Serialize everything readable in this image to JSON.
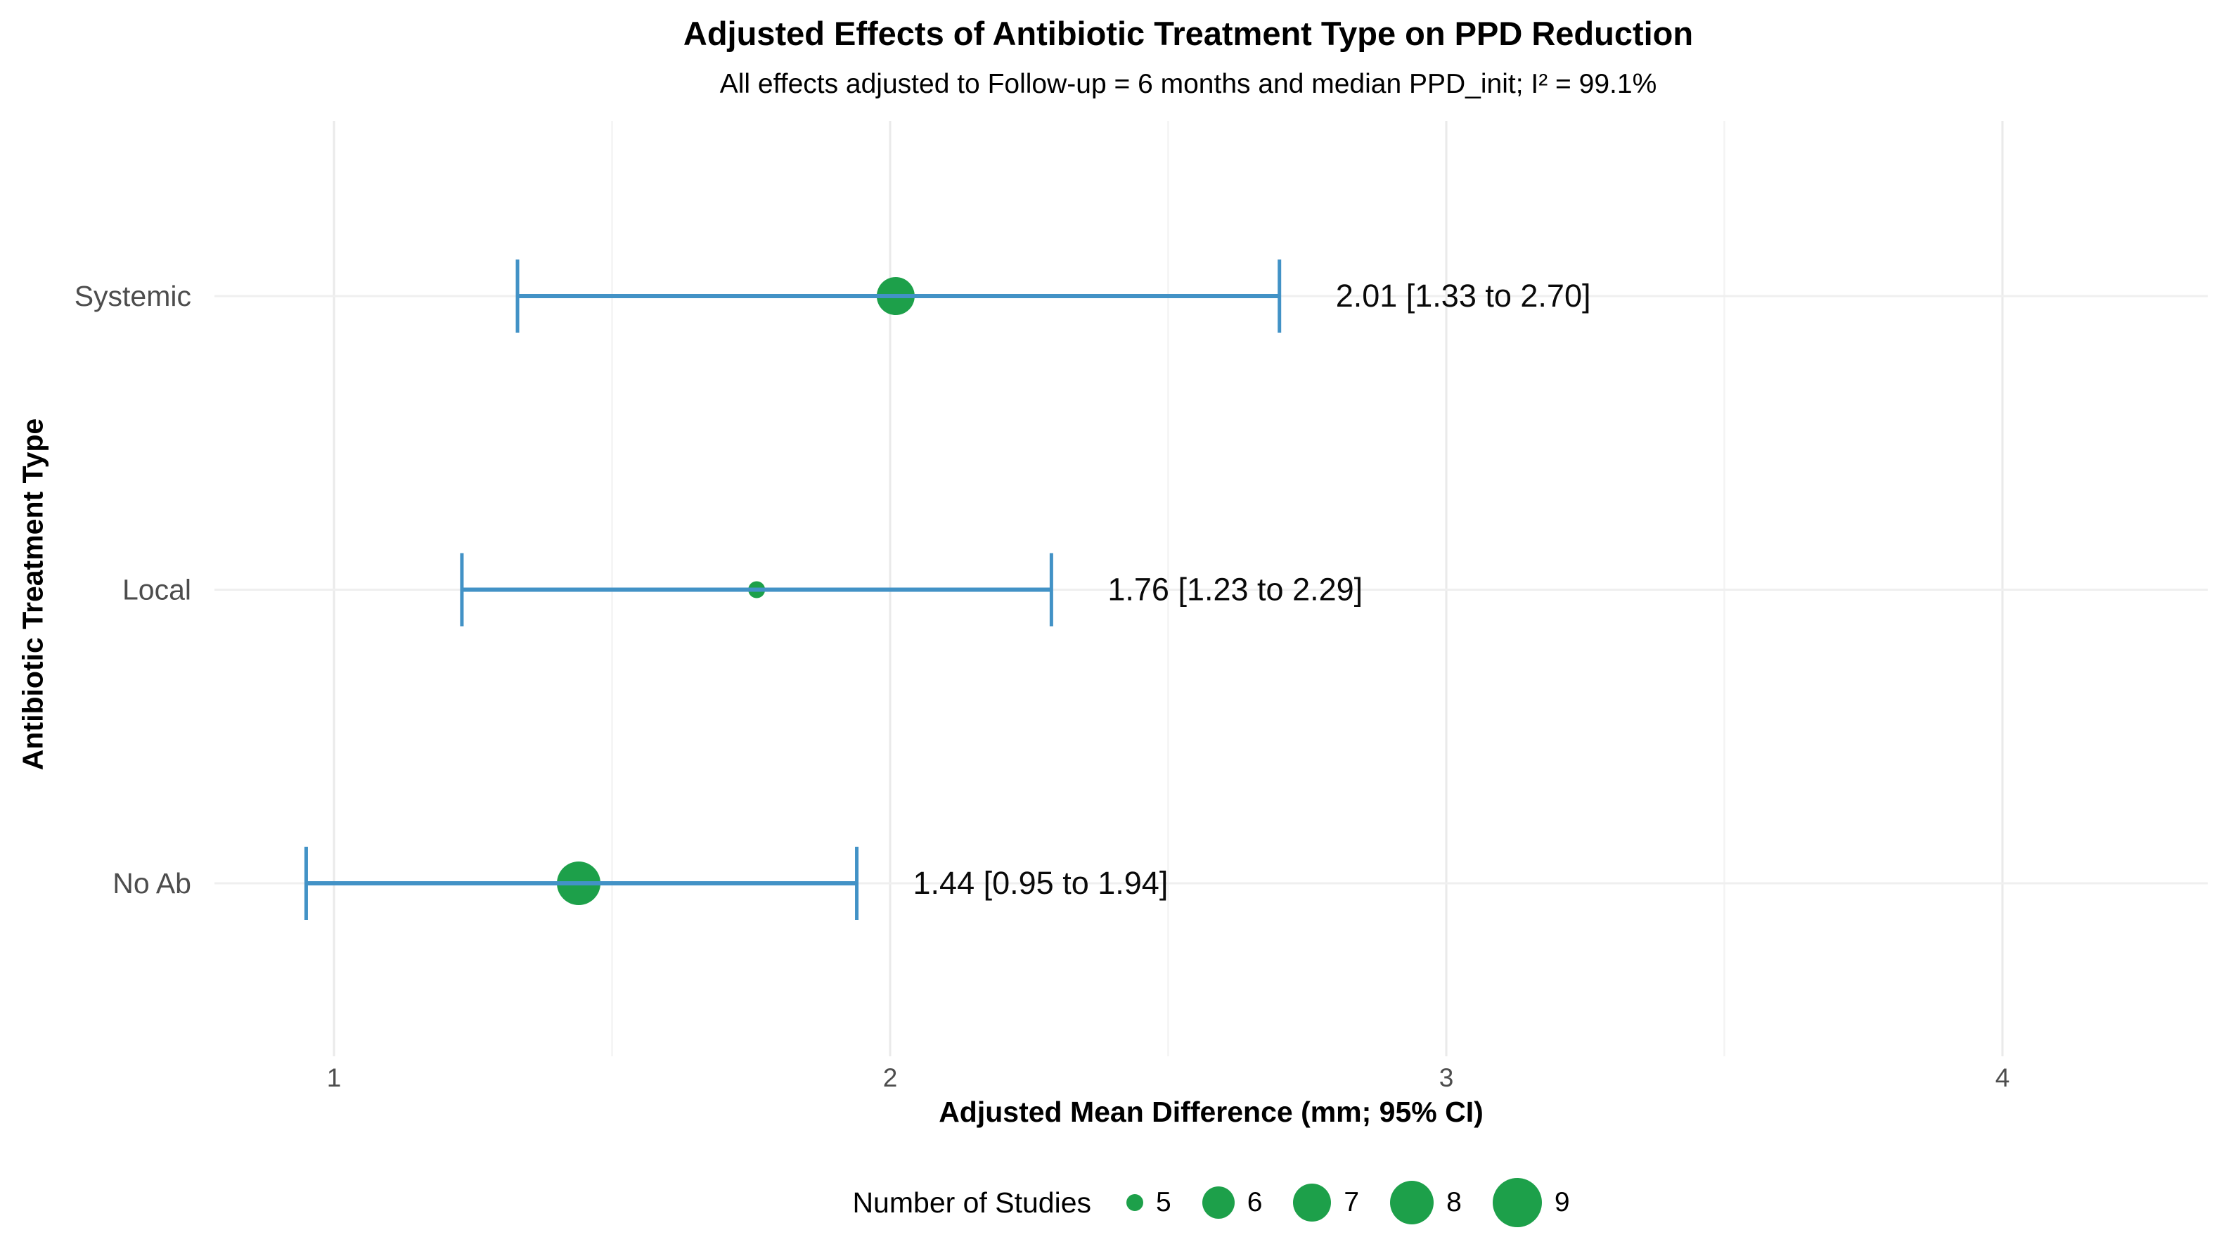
{
  "chart_data": {
    "type": "scatter",
    "subtype": "forest-plot",
    "title": "Adjusted Effects of Antibiotic Treatment Type on PPD Reduction",
    "subtitle": "All effects adjusted to Follow-up = 6 months and median PPD_init; I² = 99.1%",
    "xlabel": "Adjusted Mean Difference (mm; 95% CI)",
    "ylabel": "Antibiotic Treatment Type",
    "categories": [
      "Systemic",
      "Local",
      "No Ab"
    ],
    "points": [
      {
        "category": "Systemic",
        "estimate": 2.01,
        "ci_low": 1.33,
        "ci_high": 2.7,
        "n_studies": 7,
        "annotation": "2.01 [1.33 to 2.70]"
      },
      {
        "category": "Local",
        "estimate": 1.76,
        "ci_low": 1.23,
        "ci_high": 2.29,
        "n_studies": 5,
        "annotation": "1.76 [1.23 to 2.29]"
      },
      {
        "category": "No Ab",
        "estimate": 1.44,
        "ci_low": 0.95,
        "ci_high": 1.94,
        "n_studies": 8,
        "annotation": "1.44 [0.95 to 1.94]"
      }
    ],
    "x_ticks": [
      1,
      2,
      3,
      4
    ],
    "x_minor_gridlines": [
      1.5,
      2.5,
      3.5
    ],
    "xlim": [
      0.785,
      4.37
    ],
    "grid": "major and minor vertical, one horizontal line per category",
    "legend": {
      "title": "Number of Studies",
      "position": "bottom",
      "sizes": [
        5,
        6,
        7,
        8,
        9
      ],
      "size_radius_px": {
        "5": 12,
        "6": 23,
        "7": 27,
        "8": 31,
        "9": 35
      }
    }
  },
  "colors": {
    "point_green": "#1DA04A",
    "interval_blue": "#4292C6",
    "grid_major": "#EAEAEA",
    "grid_minor": "#F4F4F4",
    "row_gridline": "#EFEFEF",
    "axis_text_gray": "#4D4D4D",
    "annotation_black": "#0A0A0A",
    "background": "#FFFFFF"
  }
}
